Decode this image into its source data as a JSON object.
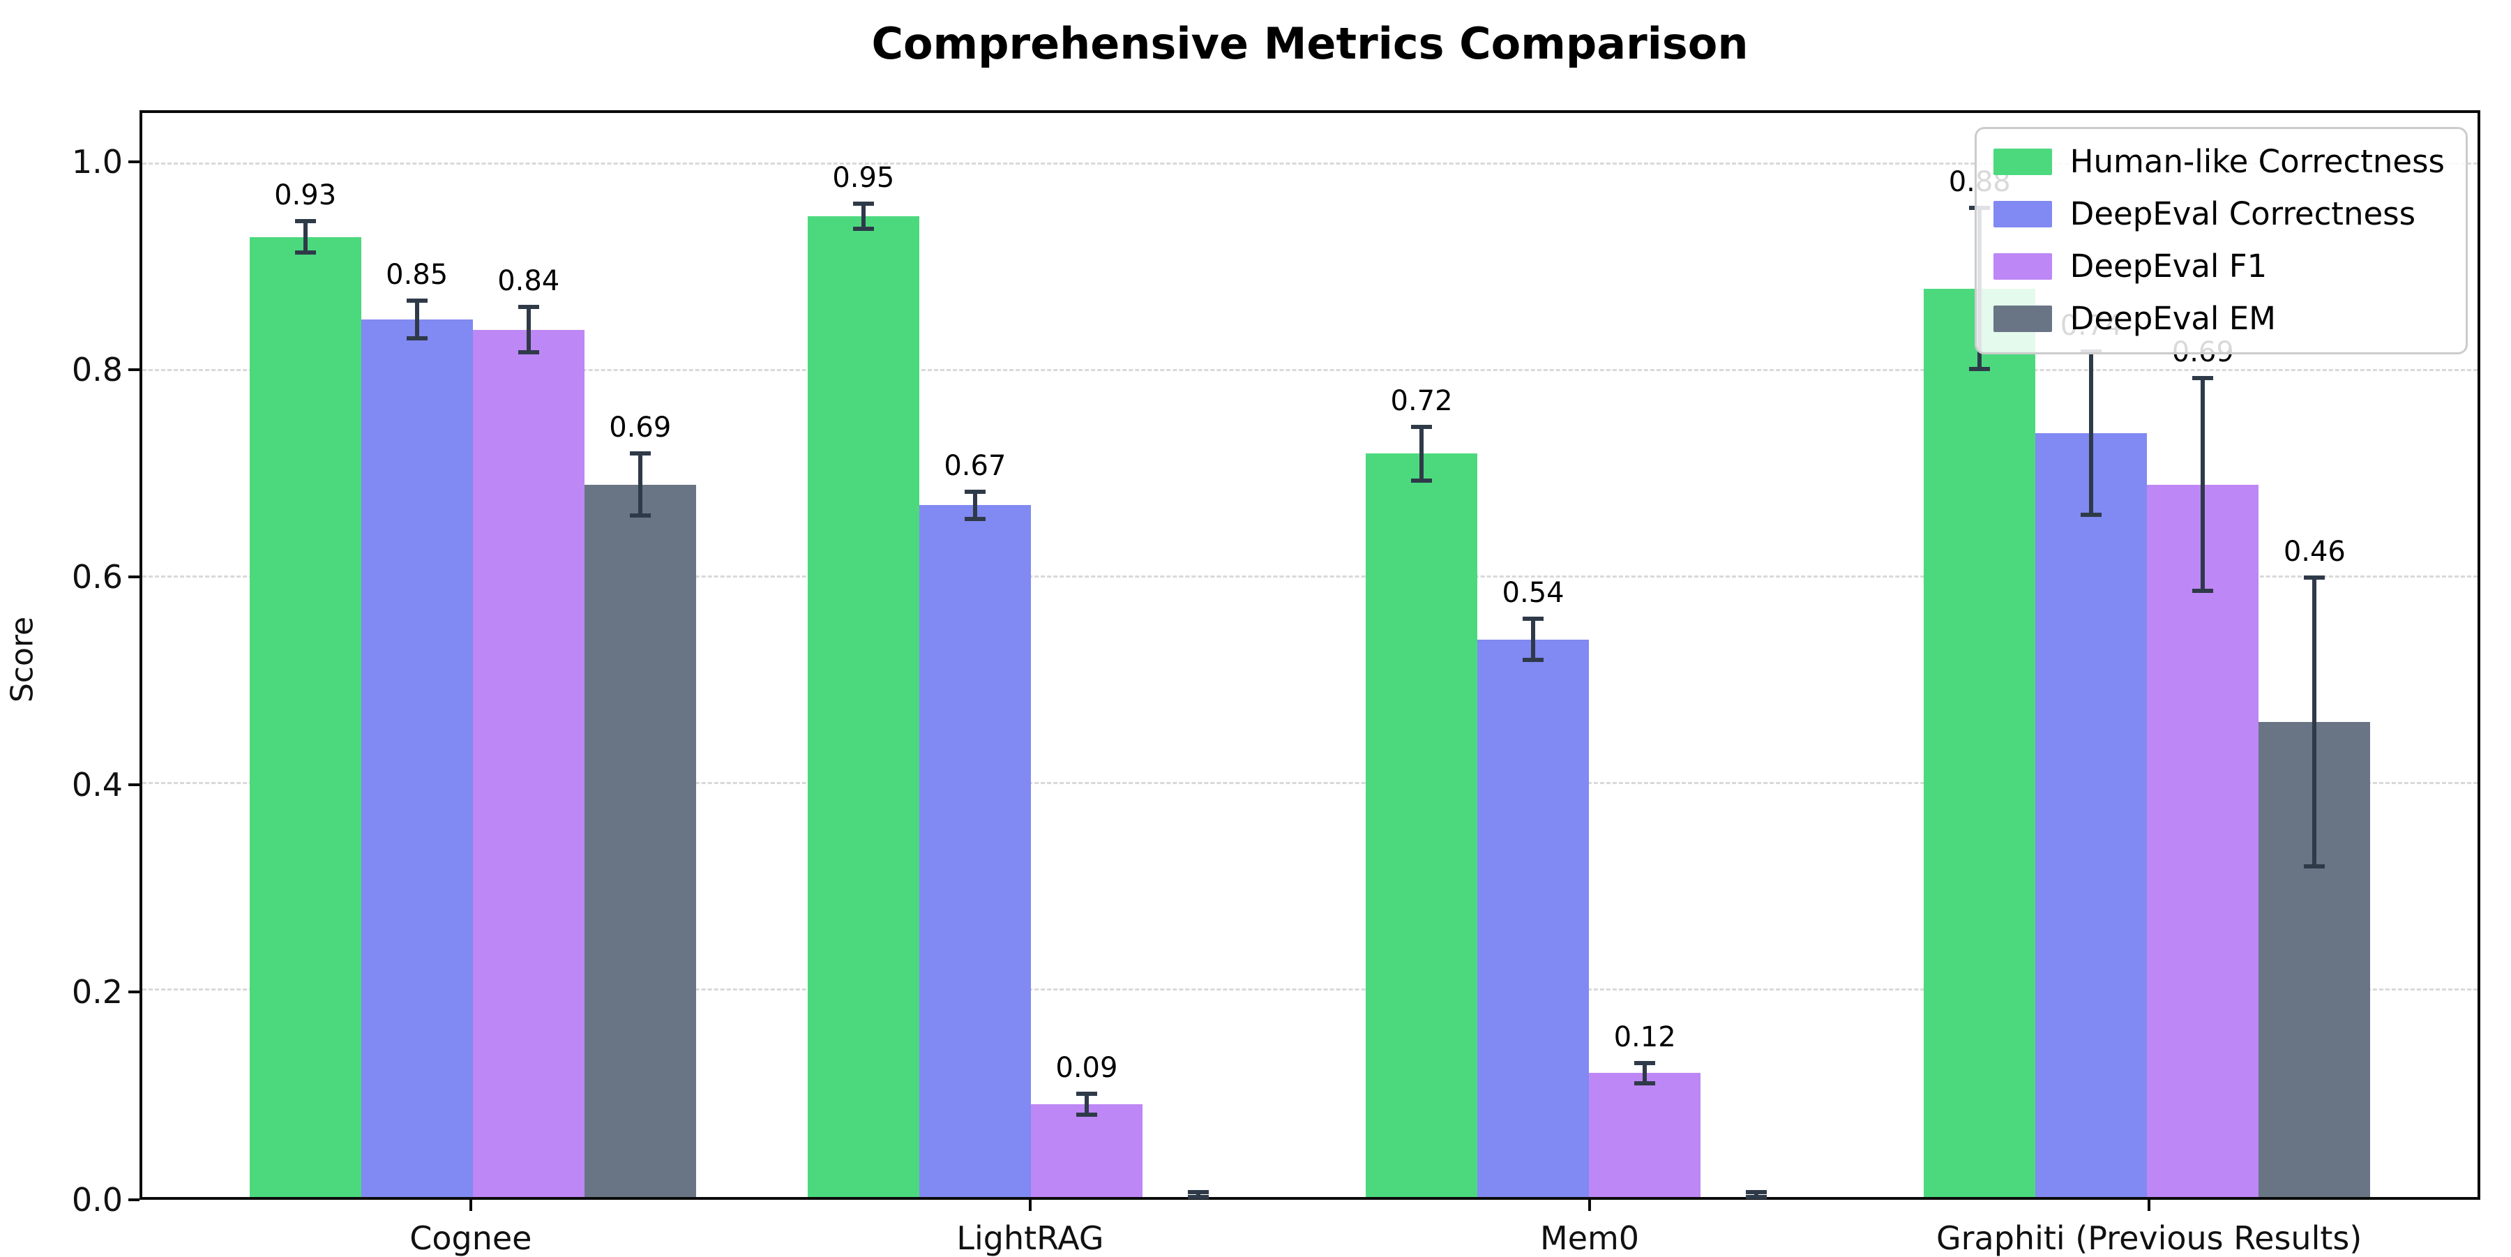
{
  "chart_data": {
    "type": "bar",
    "title": "Comprehensive Metrics Comparison",
    "xlabel": "",
    "ylabel": "Score",
    "categories": [
      "Cognee",
      "LightRAG",
      "Mem0",
      "Graphiti (Previous Results)"
    ],
    "series": [
      {
        "name": "Human-like Correctness",
        "color": "#4cd97e",
        "values": [
          0.93,
          0.95,
          0.72,
          0.88
        ],
        "errors": [
          0.015,
          0.012,
          0.026,
          0.078
        ],
        "labels": [
          "0.93",
          "0.95",
          "0.72",
          "0.88"
        ]
      },
      {
        "name": "DeepEval Correctness",
        "color": "#8189f2",
        "values": [
          0.85,
          0.67,
          0.54,
          0.74
        ],
        "errors": [
          0.018,
          0.013,
          0.02,
          0.079
        ],
        "labels": [
          "0.85",
          "0.67",
          "0.54",
          "0.74"
        ]
      },
      {
        "name": "DeepEval F1",
        "color": "#bd87f5",
        "values": [
          0.84,
          0.09,
          0.12,
          0.69
        ],
        "errors": [
          0.022,
          0.01,
          0.01,
          0.103
        ],
        "labels": [
          "0.84",
          "0.09",
          "0.12",
          "0.69"
        ]
      },
      {
        "name": "DeepEval EM",
        "color": "#697585",
        "values": [
          0.69,
          0.0,
          0.0,
          0.46
        ],
        "errors": [
          0.03,
          0.005,
          0.005,
          0.14
        ],
        "labels": [
          "0.69",
          "",
          "",
          "0.46"
        ]
      }
    ],
    "yticks": [
      "0.0",
      "0.2",
      "0.4",
      "0.6",
      "0.8",
      "1.0"
    ],
    "ytick_values": [
      0.0,
      0.2,
      0.4,
      0.6,
      0.8,
      1.0
    ],
    "ylim": [
      0,
      1.05
    ],
    "bar_width": 0.2,
    "grid": "horizontal-dashed",
    "legend_position": "upper right",
    "colors": {
      "grid": "#d9d9d9",
      "error_bar": "#2f3a49",
      "spine": "#0a0a0a",
      "background": "#ffffff"
    }
  }
}
